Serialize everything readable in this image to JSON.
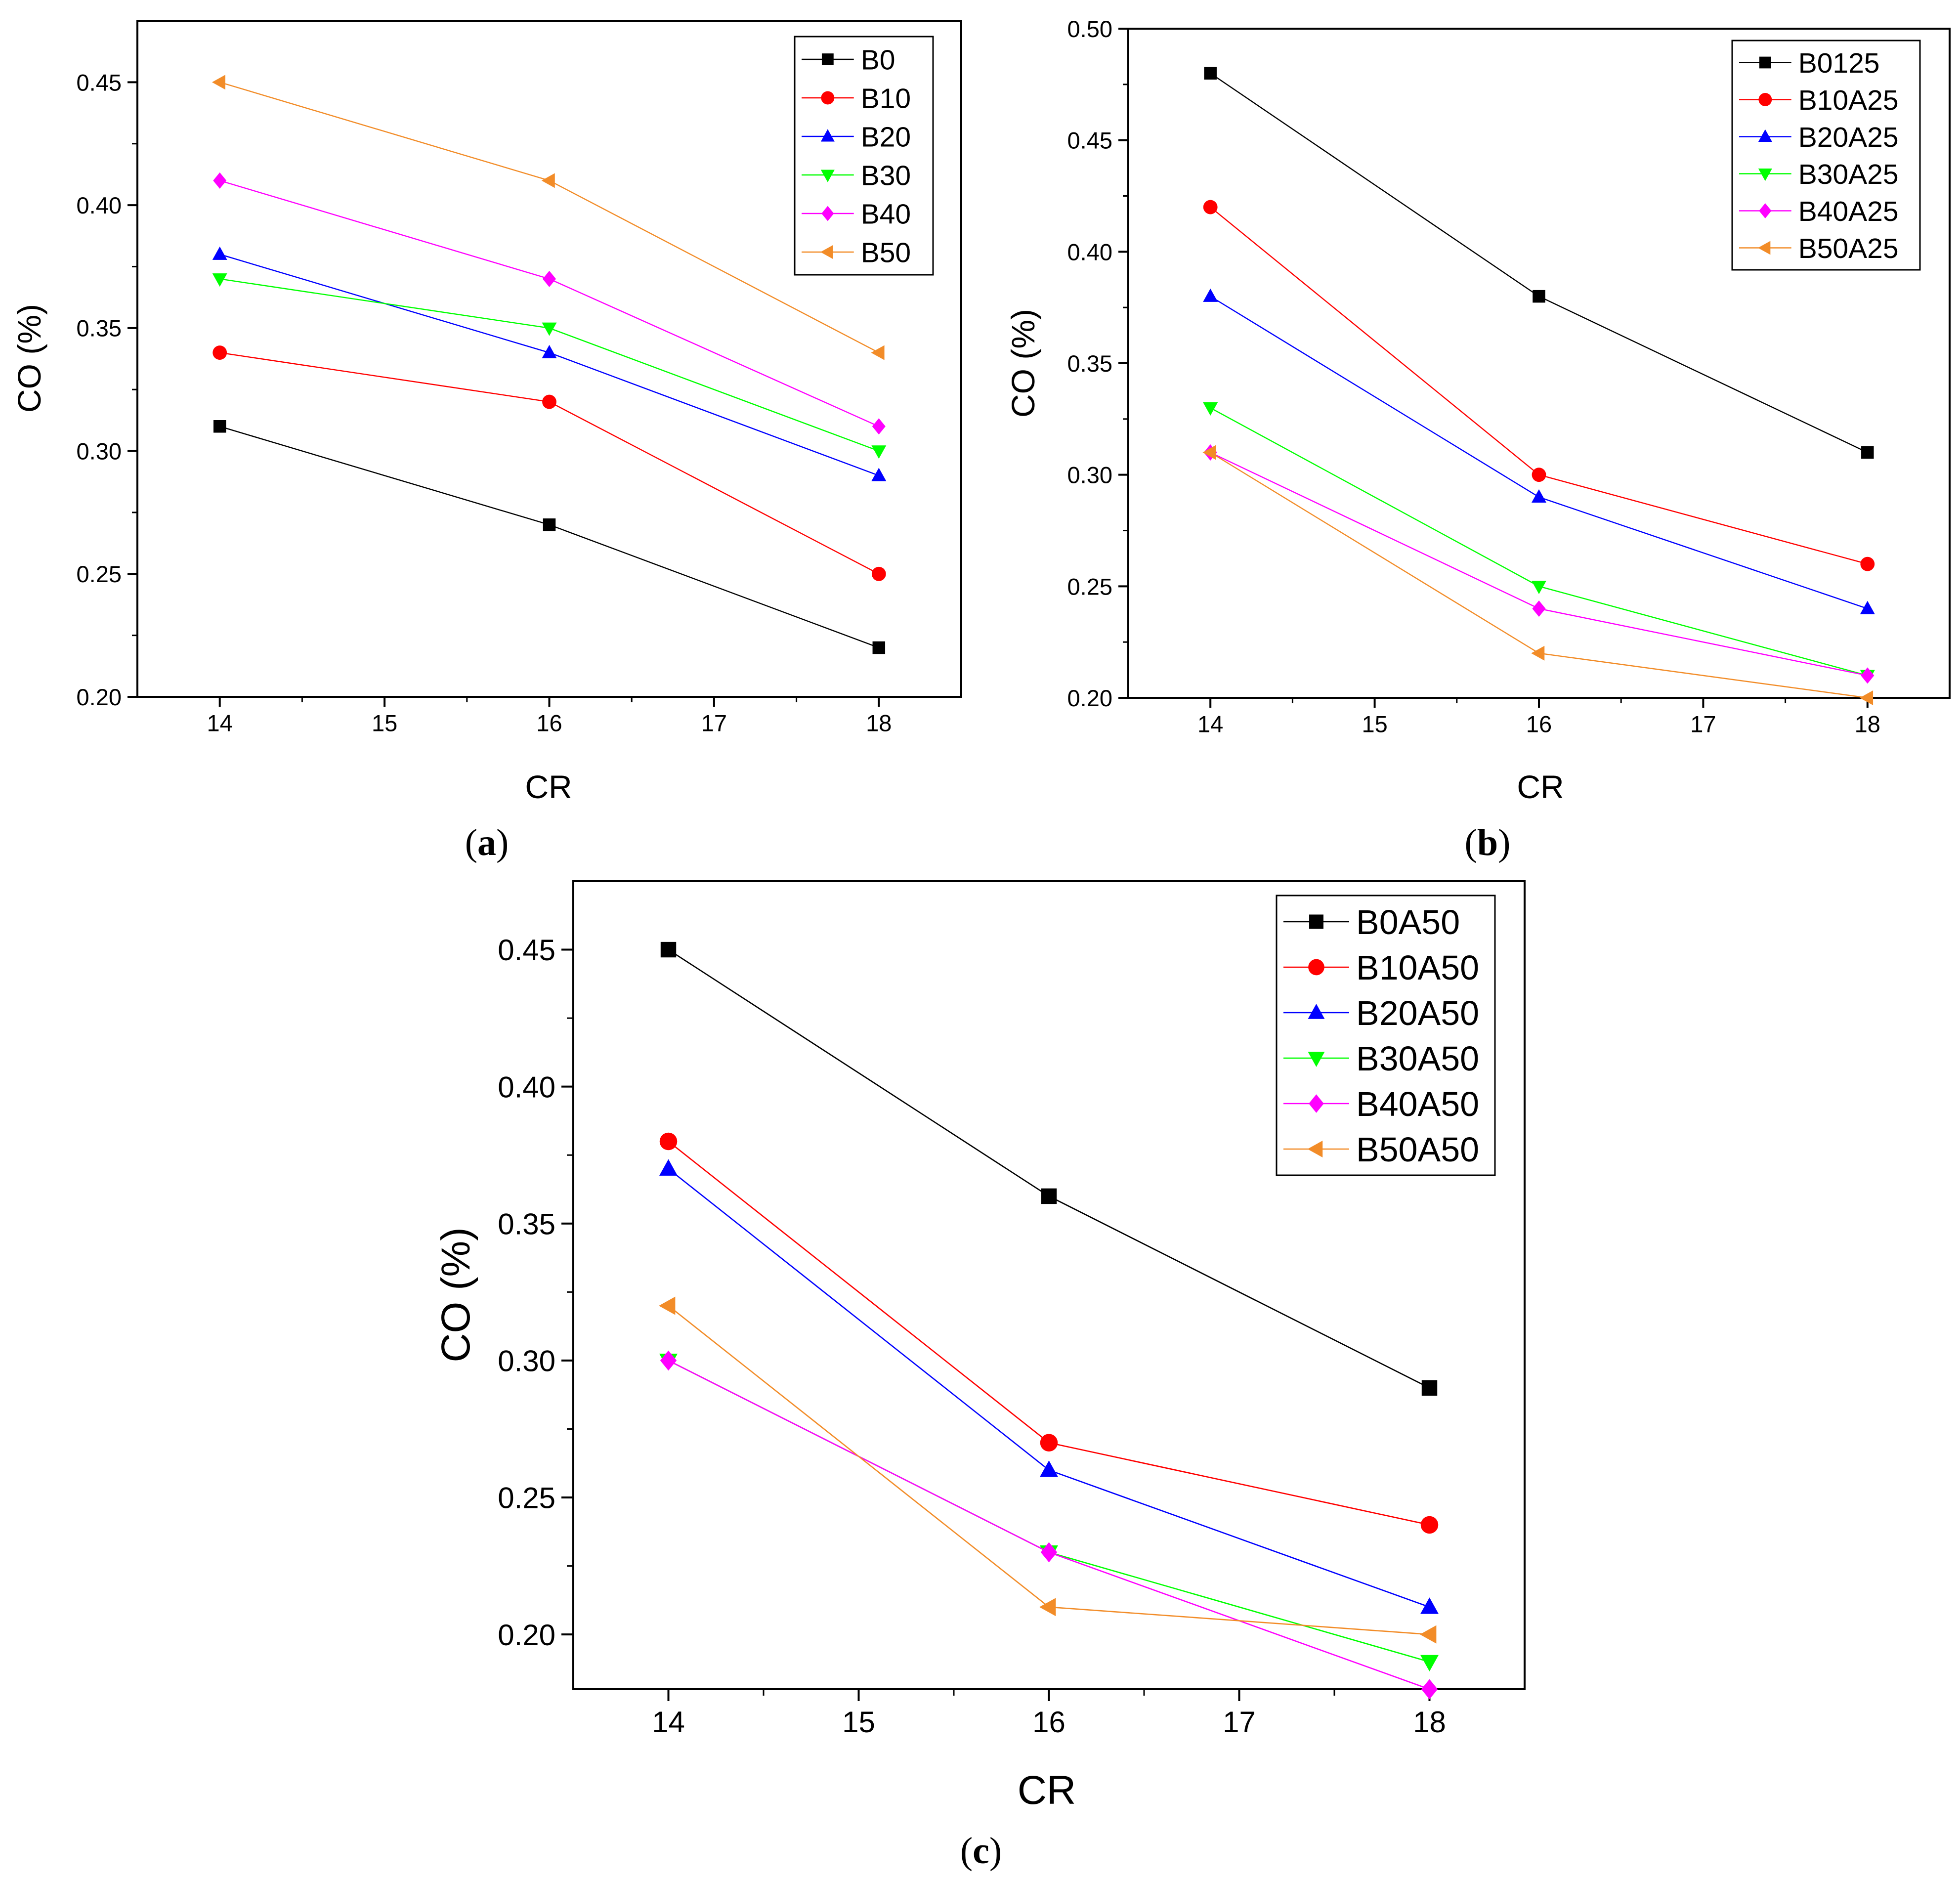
{
  "figure": {
    "panels": [
      {
        "label_open": "(",
        "label_letter": "a",
        "label_close": ")"
      },
      {
        "label_open": "(",
        "label_letter": "b",
        "label_close": ")"
      },
      {
        "label_open": "(",
        "label_letter": "c",
        "label_close": ")"
      }
    ]
  },
  "colors": {
    "black": "#000000",
    "red": "#ff0000",
    "blue": "#0000ff",
    "green": "#00ff00",
    "magenta": "#ff00ff",
    "orange": "#f28c28"
  },
  "chart_data": [
    {
      "type": "line",
      "xlabel": "CR",
      "ylabel": "CO (%)",
      "x": [
        14,
        16,
        18
      ],
      "xlim": [
        13.5,
        18.5
      ],
      "ylim": [
        0.2,
        0.475
      ],
      "xticks": [
        "14",
        "15",
        "16",
        "17",
        "18"
      ],
      "yticks": [
        "0.20",
        "0.25",
        "0.30",
        "0.35",
        "0.40",
        "0.45"
      ],
      "legend_position": "top-right",
      "series": [
        {
          "name": "B0",
          "marker": "square",
          "color": "#000000",
          "values": [
            0.31,
            0.27,
            0.22
          ]
        },
        {
          "name": "B10",
          "marker": "circle",
          "color": "#ff0000",
          "values": [
            0.34,
            0.32,
            0.25
          ]
        },
        {
          "name": "B20",
          "marker": "triangle-up",
          "color": "#0000ff",
          "values": [
            0.38,
            0.34,
            0.29
          ]
        },
        {
          "name": "B30",
          "marker": "triangle-down",
          "color": "#00ff00",
          "values": [
            0.37,
            0.35,
            0.3
          ]
        },
        {
          "name": "B40",
          "marker": "diamond",
          "color": "#ff00ff",
          "values": [
            0.41,
            0.37,
            0.31
          ]
        },
        {
          "name": "B50",
          "marker": "triangle-left",
          "color": "#f28c28",
          "values": [
            0.45,
            0.41,
            0.34
          ]
        }
      ]
    },
    {
      "type": "line",
      "xlabel": "CR",
      "ylabel": "CO (%)",
      "x": [
        14,
        16,
        18
      ],
      "xlim": [
        13.5,
        18.5
      ],
      "ylim": [
        0.2,
        0.5
      ],
      "xticks": [
        "14",
        "15",
        "16",
        "17",
        "18"
      ],
      "yticks": [
        "0.20",
        "0.25",
        "0.30",
        "0.35",
        "0.40",
        "0.45",
        "0.50"
      ],
      "legend_position": "top-right",
      "series": [
        {
          "name": "B0125",
          "marker": "square",
          "color": "#000000",
          "values": [
            0.48,
            0.38,
            0.31
          ]
        },
        {
          "name": "B10A25",
          "marker": "circle",
          "color": "#ff0000",
          "values": [
            0.42,
            0.3,
            0.26
          ]
        },
        {
          "name": "B20A25",
          "marker": "triangle-up",
          "color": "#0000ff",
          "values": [
            0.38,
            0.29,
            0.24
          ]
        },
        {
          "name": "B30A25",
          "marker": "triangle-down",
          "color": "#00ff00",
          "values": [
            0.33,
            0.25,
            0.21
          ]
        },
        {
          "name": "B40A25",
          "marker": "diamond",
          "color": "#ff00ff",
          "values": [
            0.31,
            0.24,
            0.21
          ]
        },
        {
          "name": "B50A25",
          "marker": "triangle-left",
          "color": "#f28c28",
          "values": [
            0.31,
            0.22,
            0.2
          ]
        }
      ]
    },
    {
      "type": "line",
      "xlabel": "CR",
      "ylabel": "CO (%)",
      "x": [
        14,
        16,
        18
      ],
      "xlim": [
        13.5,
        18.5
      ],
      "ylim": [
        0.18,
        0.475
      ],
      "xticks": [
        "14",
        "15",
        "16",
        "17",
        "18"
      ],
      "yticks": [
        "0.20",
        "0.25",
        "0.30",
        "0.35",
        "0.40",
        "0.45"
      ],
      "legend_position": "top-right",
      "series": [
        {
          "name": "B0A50",
          "marker": "square",
          "color": "#000000",
          "values": [
            0.45,
            0.36,
            0.29
          ]
        },
        {
          "name": "B10A50",
          "marker": "circle",
          "color": "#ff0000",
          "values": [
            0.38,
            0.27,
            0.24
          ]
        },
        {
          "name": "B20A50",
          "marker": "triangle-up",
          "color": "#0000ff",
          "values": [
            0.37,
            0.26,
            0.21
          ]
        },
        {
          "name": "B30A50",
          "marker": "triangle-down",
          "color": "#00ff00",
          "values": [
            0.3,
            0.23,
            0.19
          ]
        },
        {
          "name": "B40A50",
          "marker": "diamond",
          "color": "#ff00ff",
          "values": [
            0.3,
            0.23,
            0.18
          ]
        },
        {
          "name": "B50A50",
          "marker": "triangle-left",
          "color": "#f28c28",
          "values": [
            0.32,
            0.21,
            0.2
          ]
        }
      ]
    }
  ]
}
